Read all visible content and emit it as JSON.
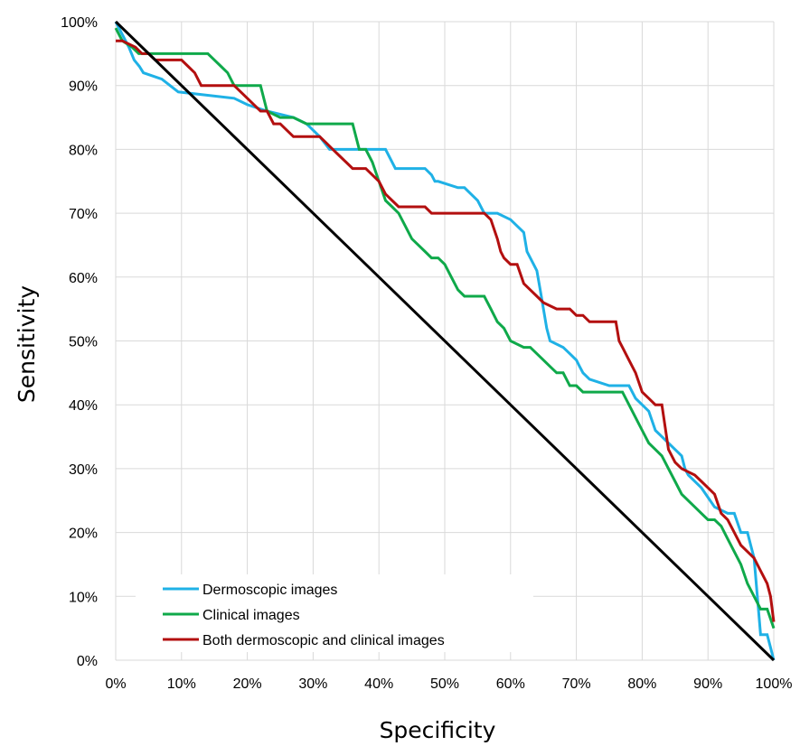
{
  "chart_data": {
    "type": "line",
    "title": "",
    "xlabel": "Specificity",
    "ylabel": "Sensitivity",
    "xlim": [
      0,
      100
    ],
    "ylim": [
      0,
      100
    ],
    "x_ticks": [
      "0%",
      "10%",
      "20%",
      "30%",
      "40%",
      "50%",
      "60%",
      "70%",
      "80%",
      "90%",
      "100%"
    ],
    "y_ticks": [
      "0%",
      "10%",
      "20%",
      "30%",
      "40%",
      "50%",
      "60%",
      "70%",
      "80%",
      "90%",
      "100%"
    ],
    "grid": true,
    "legend_position": "bottom-left",
    "series": [
      {
        "name": "Dermoscopic images",
        "color": "#1fb1e6",
        "x": [
          0,
          1.5,
          2,
          2.8,
          3.6,
          4.2,
          7,
          9.5,
          18,
          20,
          23,
          27,
          29,
          31,
          32.5,
          37,
          41,
          42.5,
          47,
          48,
          48.5,
          49,
          52,
          53,
          54,
          55,
          56,
          57,
          58,
          60,
          62,
          62.5,
          63.5,
          64,
          64.5,
          65,
          65.5,
          66,
          68,
          69,
          70,
          70.5,
          71,
          72,
          75,
          78,
          79,
          81,
          82,
          84,
          85,
          86,
          86.5,
          87,
          89,
          91,
          93,
          94,
          95,
          96,
          96.5,
          97,
          97.5,
          98,
          98.5,
          99,
          99.5,
          100
        ],
        "y": [
          100,
          97,
          96,
          94,
          93,
          92,
          91,
          89,
          88,
          87,
          86,
          85,
          84,
          82,
          80,
          80,
          80,
          77,
          77,
          76,
          75,
          75,
          74,
          74,
          73,
          72,
          70,
          70,
          70,
          69,
          67,
          64,
          62,
          61,
          58,
          55,
          52,
          50,
          49,
          48,
          47,
          46,
          45,
          44,
          43,
          43,
          41,
          39,
          36,
          34,
          33,
          32,
          30,
          29,
          27,
          24,
          23,
          23,
          20,
          20,
          18,
          16,
          10,
          4,
          4,
          4,
          2,
          0
        ]
      },
      {
        "name": "Clinical images",
        "color": "#0fa94a",
        "x": [
          0,
          0.5,
          1,
          2.5,
          3.5,
          7,
          8,
          14,
          15,
          16,
          17,
          18,
          20,
          22,
          23,
          25,
          27,
          29,
          30,
          31,
          32,
          33,
          34,
          36,
          37,
          38,
          39,
          40,
          41,
          42,
          43,
          44,
          45,
          46,
          47,
          48,
          49,
          50,
          51,
          52,
          53,
          54,
          55,
          56,
          57,
          58,
          59,
          60,
          62,
          63,
          65,
          66,
          67,
          68,
          69,
          70,
          71,
          72,
          77,
          79,
          80,
          81,
          82,
          83,
          84,
          85,
          86,
          87,
          88,
          89,
          90,
          91,
          92,
          93,
          94,
          95,
          96,
          97,
          98,
          99,
          100
        ],
        "y": [
          99,
          98,
          97,
          96,
          95,
          95,
          95,
          95,
          94,
          93,
          92,
          90,
          90,
          90,
          86,
          85,
          85,
          84,
          84,
          84,
          84,
          84,
          84,
          84,
          80,
          80,
          78,
          75,
          72,
          71,
          70,
          68,
          66,
          65,
          64,
          63,
          63,
          62,
          60,
          58,
          57,
          57,
          57,
          57,
          55,
          53,
          52,
          50,
          49,
          49,
          47,
          46,
          45,
          45,
          43,
          43,
          42,
          42,
          42,
          38,
          36,
          34,
          33,
          32,
          30,
          28,
          26,
          25,
          24,
          23,
          22,
          22,
          21,
          19,
          17,
          15,
          12,
          10,
          8,
          8,
          5
        ]
      },
      {
        "name": "Both dermoscopic and clinical images",
        "color": "#b30f0f",
        "x": [
          0,
          1,
          3,
          4,
          5,
          6,
          10,
          11,
          12,
          13,
          18,
          20,
          21,
          22,
          23,
          24,
          25,
          26,
          27,
          30,
          31,
          32,
          33,
          34,
          35,
          36,
          38,
          39,
          40,
          41,
          42,
          43,
          44,
          45,
          47,
          48,
          49,
          52,
          56,
          57,
          58,
          58.5,
          59,
          60,
          61,
          62,
          63,
          64,
          65,
          67,
          68,
          69,
          70,
          71,
          72,
          73,
          74,
          76,
          76.5,
          77,
          78,
          79,
          80,
          81,
          82,
          83,
          84,
          85,
          86,
          88,
          89,
          90,
          91,
          92,
          93,
          94,
          95,
          96,
          97,
          98,
          99,
          99.5,
          100
        ],
        "y": [
          97,
          97,
          96,
          95,
          95,
          94,
          94,
          93,
          92,
          90,
          90,
          88,
          87,
          86,
          86,
          84,
          84,
          83,
          82,
          82,
          82,
          81,
          80,
          79,
          78,
          77,
          77,
          76,
          75,
          73,
          72,
          71,
          71,
          71,
          71,
          70,
          70,
          70,
          70,
          69,
          66,
          64,
          63,
          62,
          62,
          59,
          58,
          57,
          56,
          55,
          55,
          55,
          54,
          54,
          53,
          53,
          53,
          53,
          50,
          49,
          47,
          45,
          42,
          41,
          40,
          40,
          33,
          31,
          30,
          29,
          28,
          27,
          26,
          23,
          22,
          20,
          18,
          17,
          16,
          14,
          12,
          10,
          6
        ]
      },
      {
        "name": "",
        "color": "#000000",
        "x": [
          0,
          100
        ],
        "y": [
          100,
          0
        ]
      }
    ]
  }
}
